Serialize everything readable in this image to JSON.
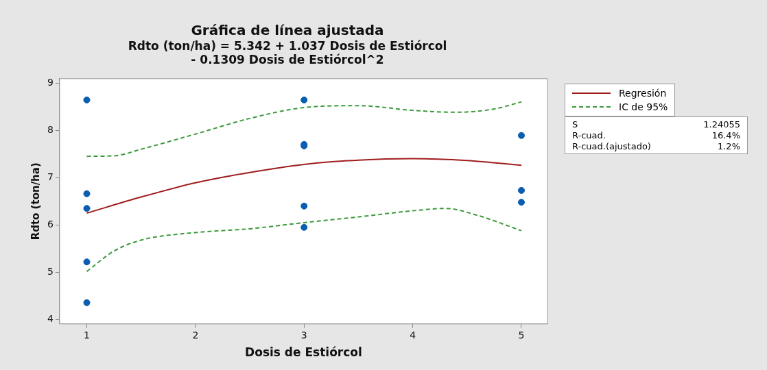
{
  "chart_data": {
    "type": "scatter",
    "title": "Gráfica de línea ajustada",
    "subtitle": "Rdto (ton/ha) = 5.342 + 1.037 Dosis de Estiórcol\n- 0.1309 Dosis de Estiórcol^2",
    "xlabel": "Dosis de Estiórcol",
    "ylabel": "Rdto (ton/ha)",
    "xlim": [
      0.75,
      5.24
    ],
    "ylim": [
      3.91,
      9.09
    ],
    "xticks": [
      1,
      2,
      3,
      4,
      5
    ],
    "yticks": [
      4,
      5,
      6,
      7,
      8,
      9
    ],
    "grid": false,
    "legend": "top right",
    "marker": "circle",
    "annotations": [
      "S",
      "1.24055",
      "R-cuad.",
      "16.4%",
      "R-cuad.(ajustado)",
      "1.2%"
    ],
    "series": [
      {
        "color": "#0a5db0",
        "x": [
          1,
          1,
          1,
          1,
          1,
          3,
          3,
          3,
          3,
          3,
          5,
          5,
          5
        ],
        "values": [
          8.64,
          6.66,
          6.35,
          5.22,
          4.36,
          8.64,
          7.7,
          7.67,
          6.4,
          5.95,
          7.89,
          6.73,
          6.48
        ]
      },
      {
        "type": "line",
        "name": "Regresión",
        "color": "#a01c1c",
        "line_style": "solid",
        "marker": "none",
        "x": [
          1,
          1.5,
          2,
          2.5,
          3,
          3.5,
          4,
          4.5,
          5
        ],
        "values": [
          6.25,
          6.59,
          6.89,
          7.11,
          7.28,
          7.37,
          7.4,
          7.36,
          7.26
        ]
      },
      {
        "type": "line",
        "name": "IC de 95%",
        "color": "#3a9a3a",
        "line_style": "dashed",
        "marker": "none",
        "x": [
          1,
          1.25,
          1.5,
          2,
          2.5,
          3,
          3.5,
          4,
          4.4,
          4.75,
          5
        ],
        "values": [
          7.45,
          7.46,
          7.6,
          7.92,
          8.25,
          8.48,
          8.52,
          8.42,
          8.38,
          8.45,
          8.6
        ]
      },
      {
        "type": "line",
        "color": "#3a9a3a",
        "line_style": "dashed",
        "marker": "none",
        "x": [
          1,
          1.25,
          1.5,
          2,
          2.5,
          3,
          3.5,
          4,
          4.3,
          4.6,
          5
        ],
        "values": [
          5.02,
          5.45,
          5.68,
          5.84,
          5.92,
          6.05,
          6.17,
          6.3,
          6.35,
          6.2,
          5.88
        ]
      }
    ]
  }
}
